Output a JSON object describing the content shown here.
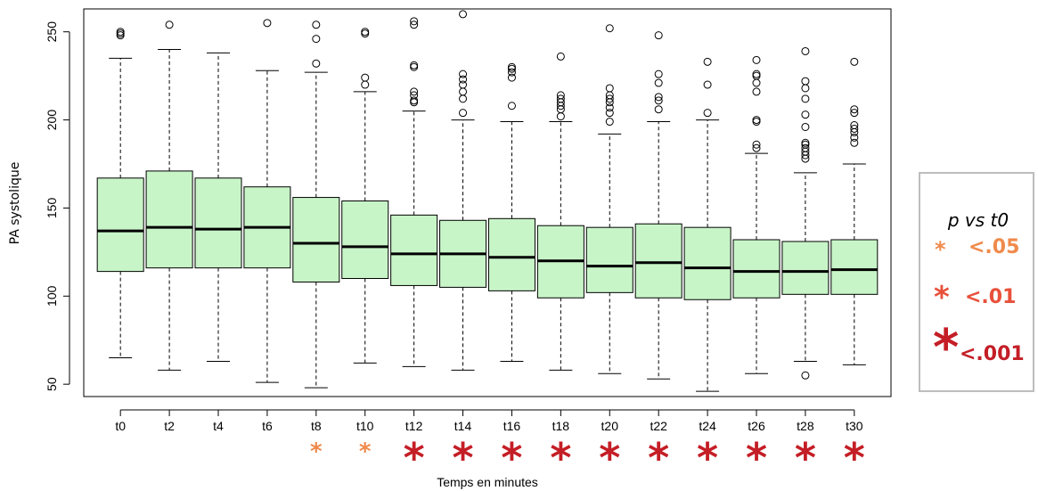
{
  "chart_data": {
    "type": "boxplot",
    "xlabel": "Temps en minutes",
    "ylabel": "PA systolique",
    "ylim": [
      43,
      263
    ],
    "yticks": [
      50,
      100,
      150,
      200,
      250
    ],
    "grid": false,
    "box_fill": "#c8f5c8",
    "categories": [
      "t0",
      "t2",
      "t4",
      "t6",
      "t8",
      "t10",
      "t12",
      "t14",
      "t16",
      "t18",
      "t20",
      "t22",
      "t24",
      "t26",
      "t28",
      "t30"
    ],
    "boxes": [
      {
        "min": 65,
        "q1": 114,
        "median": 137,
        "q3": 167,
        "max": 235,
        "outliers": [
          248,
          249,
          250
        ]
      },
      {
        "min": 58,
        "q1": 116,
        "median": 139,
        "q3": 171,
        "max": 240,
        "outliers": [
          254
        ]
      },
      {
        "min": 63,
        "q1": 116,
        "median": 138,
        "q3": 167,
        "max": 238,
        "outliers": []
      },
      {
        "min": 51,
        "q1": 116,
        "median": 139,
        "q3": 162,
        "max": 228,
        "outliers": [
          255
        ]
      },
      {
        "min": 48,
        "q1": 108,
        "median": 130,
        "q3": 156,
        "max": 227,
        "outliers": [
          232,
          246,
          254
        ]
      },
      {
        "min": 62,
        "q1": 110,
        "median": 128,
        "q3": 154,
        "max": 216,
        "outliers": [
          220,
          224,
          249,
          250
        ]
      },
      {
        "min": 60,
        "q1": 106,
        "median": 124,
        "q3": 146,
        "max": 205,
        "outliers": [
          210,
          211,
          214,
          216,
          230,
          231,
          254,
          256
        ]
      },
      {
        "min": 58,
        "q1": 105,
        "median": 124,
        "q3": 143,
        "max": 200,
        "outliers": [
          204,
          212,
          216,
          220,
          223,
          226,
          260
        ]
      },
      {
        "min": 63,
        "q1": 103,
        "median": 122,
        "q3": 144,
        "max": 199,
        "outliers": [
          208,
          224,
          227,
          229,
          230
        ]
      },
      {
        "min": 58,
        "q1": 99,
        "median": 120,
        "q3": 140,
        "max": 199,
        "outliers": [
          202,
          206,
          208,
          210,
          212,
          214,
          236
        ]
      },
      {
        "min": 56,
        "q1": 102,
        "median": 117,
        "q3": 139,
        "max": 192,
        "outliers": [
          199,
          204,
          207,
          210,
          212,
          214,
          218,
          252
        ]
      },
      {
        "min": 53,
        "q1": 99,
        "median": 119,
        "q3": 141,
        "max": 199,
        "outliers": [
          206,
          211,
          213,
          221,
          226,
          248
        ]
      },
      {
        "min": 46,
        "q1": 98,
        "median": 116,
        "q3": 139,
        "max": 200,
        "outliers": [
          204,
          220,
          233
        ]
      },
      {
        "min": 56,
        "q1": 99,
        "median": 114,
        "q3": 132,
        "max": 181,
        "outliers": [
          184,
          186,
          199,
          200,
          216,
          221,
          225,
          226,
          234
        ]
      },
      {
        "min": 63,
        "q1": 101,
        "median": 114,
        "q3": 131,
        "max": 170,
        "outliers": [
          55,
          178,
          180,
          182,
          184,
          186,
          187,
          196,
          203,
          212,
          218,
          222,
          239
        ]
      },
      {
        "min": 61,
        "q1": 101,
        "median": 115,
        "q3": 132,
        "max": 175,
        "outliers": [
          187,
          190,
          193,
          195,
          197,
          204,
          206,
          233
        ]
      }
    ],
    "significance": [
      null,
      null,
      null,
      null,
      "<.05",
      "<.05",
      "<.001",
      "<.001",
      "<.001",
      "<.001",
      "<.001",
      "<.001",
      "<.001",
      "<.001",
      "<.001",
      "<.001"
    ],
    "significance_colors": {
      "<.05": "#f08a4b",
      "<.01": "#e8503a",
      "<.001": "#c41e26"
    }
  },
  "legend": {
    "title": "p vs t0",
    "items": [
      {
        "star": "*",
        "label": "<.05",
        "color": "#f08a4b"
      },
      {
        "star": "*",
        "label": "<.01",
        "color": "#e8503a"
      },
      {
        "star": "*",
        "label": "<.001",
        "color": "#c41e26"
      }
    ]
  }
}
